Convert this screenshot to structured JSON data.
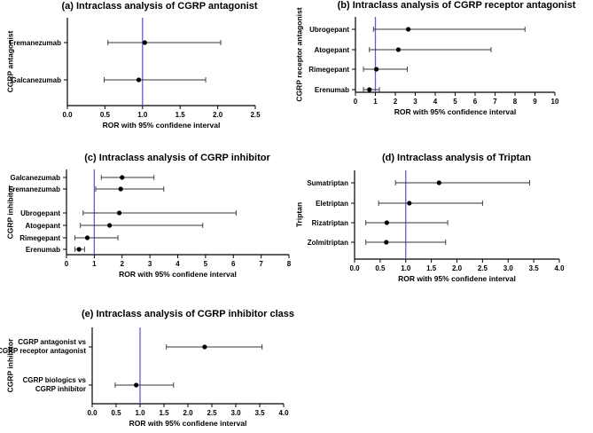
{
  "figure": {
    "ref_line_color": "#6a5acd"
  },
  "chart_data": [
    {
      "type": "forest",
      "title": "(a) Intraclass analysis of CGRP antagonist",
      "xlabel": "ROR with 95% confidene interval",
      "ylabel": "CGRP antagonist",
      "xlim": [
        0,
        2.5
      ],
      "x_ticks": [
        "0.0",
        "0.5",
        "1.0",
        "1.5",
        "2.0",
        "2.5"
      ],
      "x_tick_values": [
        0,
        0.5,
        1.0,
        1.5,
        2.0,
        2.5
      ],
      "ref_line": 1,
      "rows": [
        {
          "label": "Fremanezumab",
          "est": 1.03,
          "lo": 0.54,
          "hi": 2.04
        },
        {
          "label": "Galcanezumab",
          "est": 0.95,
          "lo": 0.49,
          "hi": 1.84
        }
      ]
    },
    {
      "type": "forest",
      "title": "(b) Intraclass analysis of CGRP receptor antagonist",
      "xlabel": "ROR with 95% confidence interval",
      "ylabel": "CGRP receptor antagonist",
      "xlim": [
        0,
        10
      ],
      "x_ticks": [
        "0",
        "1",
        "2",
        "3",
        "4",
        "5",
        "6",
        "7",
        "8",
        "9",
        "10"
      ],
      "x_tick_values": [
        0,
        1,
        2,
        3,
        4,
        5,
        6,
        7,
        8,
        9,
        10
      ],
      "ref_line": 1,
      "rows": [
        {
          "label": "Ubrogepant",
          "est": 2.65,
          "lo": 0.9,
          "hi": 8.5
        },
        {
          "label": "Atogepant",
          "est": 2.15,
          "lo": 0.7,
          "hi": 6.8
        },
        {
          "label": "Rimegepant",
          "est": 1.05,
          "lo": 0.4,
          "hi": 2.6
        },
        {
          "label": "Erenumab",
          "est": 0.7,
          "lo": 0.4,
          "hi": 1.2
        }
      ]
    },
    {
      "type": "forest",
      "title": "(c) Intraclass analysis of CGRP inhibitor",
      "xlabel": "ROR with 95% confidene interval",
      "ylabel": "CGRP inhibitor",
      "xlim": [
        0,
        8
      ],
      "x_ticks": [
        "0",
        "1",
        "2",
        "3",
        "4",
        "5",
        "6",
        "7",
        "8"
      ],
      "x_tick_values": [
        0,
        1,
        2,
        3,
        4,
        5,
        6,
        7,
        8
      ],
      "ref_line": 1,
      "rows": [
        {
          "label": "Galcanezumab",
          "est": 2.0,
          "lo": 1.25,
          "hi": 3.15
        },
        {
          "label": "Fremanezumab",
          "est": 1.95,
          "lo": 1.05,
          "hi": 3.5
        },
        {
          "label": "Ubrogepant",
          "est": 1.9,
          "lo": 0.6,
          "hi": 6.1
        },
        {
          "label": "Atogepant",
          "est": 1.55,
          "lo": 0.5,
          "hi": 4.9
        },
        {
          "label": "Rimegepant",
          "est": 0.75,
          "lo": 0.3,
          "hi": 1.85
        },
        {
          "label": "Erenumab",
          "est": 0.45,
          "lo": 0.3,
          "hi": 0.65
        }
      ]
    },
    {
      "type": "forest",
      "title": "(d) Intraclass analysis of Triptan",
      "xlabel": "ROR with 95% confidene interval",
      "ylabel": "Triptan",
      "xlim": [
        0,
        4
      ],
      "x_ticks": [
        "0.0",
        "0.5",
        "1.0",
        "1.5",
        "2.0",
        "2.5",
        "3.0",
        "3.5",
        "4.0"
      ],
      "x_tick_values": [
        0,
        0.5,
        1.0,
        1.5,
        2.0,
        2.5,
        3.0,
        3.5,
        4.0
      ],
      "ref_line": 1,
      "rows": [
        {
          "label": "Sumatriptan",
          "est": 1.65,
          "lo": 0.8,
          "hi": 3.42
        },
        {
          "label": "Eletriptan",
          "est": 1.07,
          "lo": 0.47,
          "hi": 2.5
        },
        {
          "label": "Rizatriptan",
          "est": 0.63,
          "lo": 0.22,
          "hi": 1.82
        },
        {
          "label": "Zolmitriptan",
          "est": 0.62,
          "lo": 0.22,
          "hi": 1.78
        }
      ]
    },
    {
      "type": "forest",
      "title": "(e) Intraclass analysis of CGRP inhibitor class",
      "xlabel": "ROR with 95% confidene interval",
      "ylabel": "CGRP inhibitor",
      "xlim": [
        0,
        4
      ],
      "x_ticks": [
        "0.0",
        "0.5",
        "1.0",
        "1.5",
        "2.0",
        "2.5",
        "3.0",
        "3.5",
        "4.0"
      ],
      "x_tick_values": [
        0,
        0.5,
        1.0,
        1.5,
        2.0,
        2.5,
        3.0,
        3.5,
        4.0
      ],
      "ref_line": 1,
      "rows": [
        {
          "label": [
            "CGRP antagonist vs",
            "CGRP receptor antagonist"
          ],
          "est": 2.35,
          "lo": 1.55,
          "hi": 3.55
        },
        {
          "label": [
            "CGRP biologics vs",
            "CGRP inhibitor"
          ],
          "est": 0.92,
          "lo": 0.48,
          "hi": 1.7
        }
      ]
    }
  ]
}
